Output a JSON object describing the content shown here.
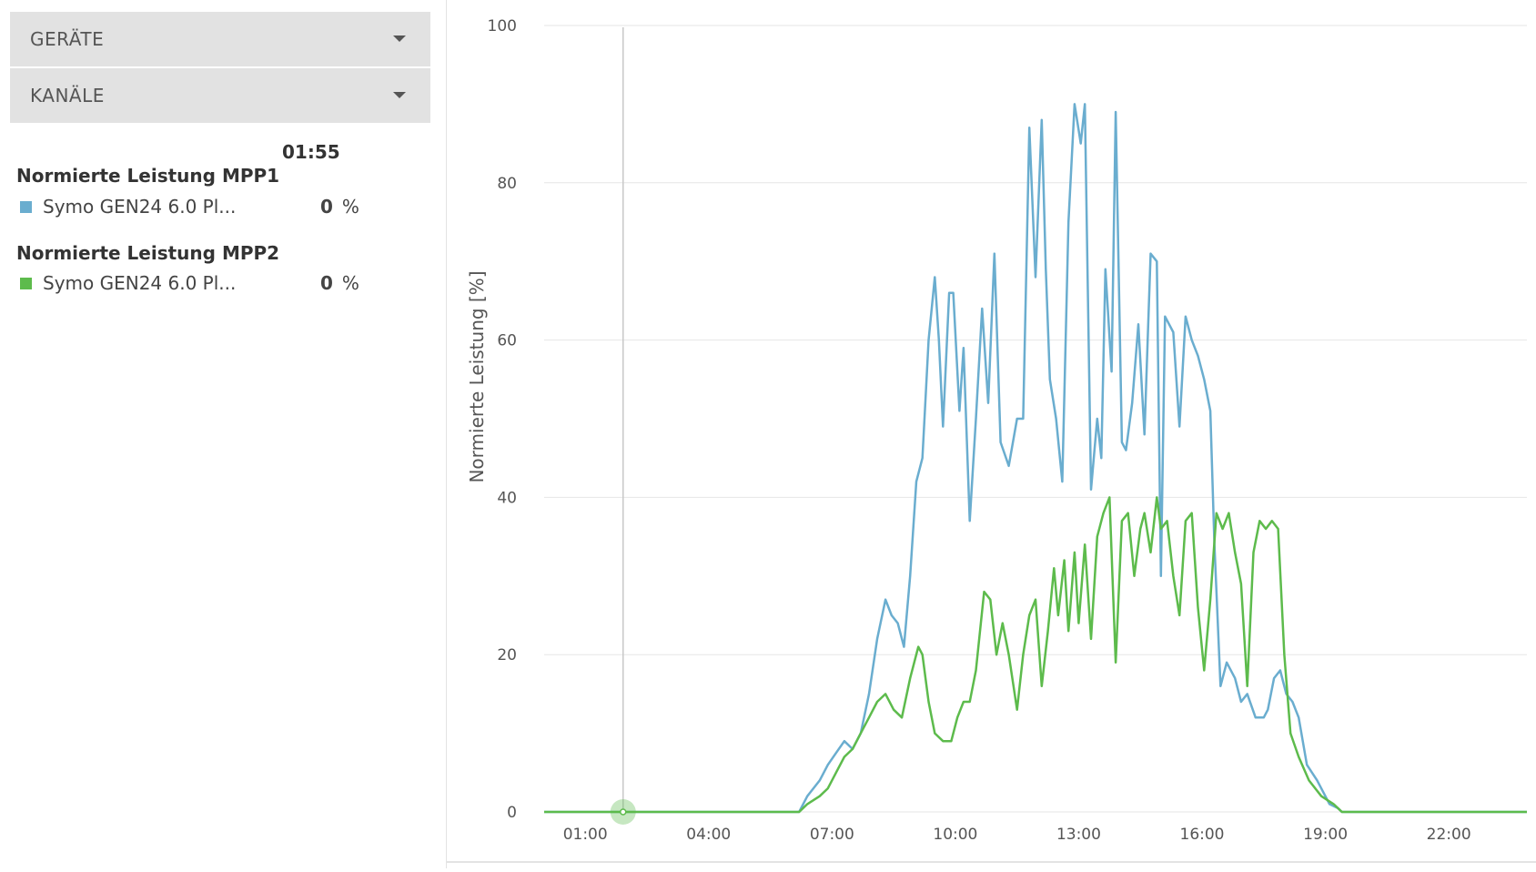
{
  "sidebar": {
    "devices_label": "GERÄTE",
    "channels_label": "KANÄLE",
    "time": "01:55",
    "groups": [
      {
        "title": "Normierte Leistung MPP1",
        "entries": [
          {
            "name": "Symo GEN24 6.0 Pl...",
            "value": "0",
            "unit": "%",
            "color": "#6aadcf"
          }
        ]
      },
      {
        "title": "Normierte Leistung MPP2",
        "entries": [
          {
            "name": "Symo GEN24 6.0 Pl...",
            "value": "0",
            "unit": "%",
            "color": "#5dbb4c"
          }
        ]
      }
    ]
  },
  "chart_data": {
    "type": "line",
    "ylabel": "Normierte Leistung [%]",
    "ylim": [
      0,
      100
    ],
    "yticks": [
      0,
      20,
      40,
      60,
      80,
      100
    ],
    "xlim": [
      0,
      23.9
    ],
    "xticks": [
      {
        "x": 1,
        "label": "01:00"
      },
      {
        "x": 4,
        "label": "04:00"
      },
      {
        "x": 7,
        "label": "07:00"
      },
      {
        "x": 10,
        "label": "10:00"
      },
      {
        "x": 13,
        "label": "13:00"
      },
      {
        "x": 16,
        "label": "16:00"
      },
      {
        "x": 19,
        "label": "19:00"
      },
      {
        "x": 22,
        "label": "22:00"
      }
    ],
    "grid": true,
    "cursor": {
      "x": 1.92,
      "y": 0
    },
    "series": [
      {
        "color": "#6aadcf",
        "points": [
          [
            0,
            0
          ],
          [
            6.2,
            0
          ],
          [
            6.4,
            2
          ],
          [
            6.7,
            4
          ],
          [
            6.9,
            6
          ],
          [
            7.1,
            7.5
          ],
          [
            7.3,
            9
          ],
          [
            7.5,
            8
          ],
          [
            7.7,
            10
          ],
          [
            7.9,
            15
          ],
          [
            8.1,
            22
          ],
          [
            8.3,
            27
          ],
          [
            8.45,
            25
          ],
          [
            8.6,
            24
          ],
          [
            8.75,
            21
          ],
          [
            8.9,
            30
          ],
          [
            9.05,
            42
          ],
          [
            9.2,
            45
          ],
          [
            9.35,
            60
          ],
          [
            9.5,
            68
          ],
          [
            9.6,
            60
          ],
          [
            9.7,
            49
          ],
          [
            9.85,
            66
          ],
          [
            9.95,
            66
          ],
          [
            10.1,
            51
          ],
          [
            10.2,
            59
          ],
          [
            10.35,
            37
          ],
          [
            10.5,
            50
          ],
          [
            10.65,
            64
          ],
          [
            10.8,
            52
          ],
          [
            10.95,
            71
          ],
          [
            11.1,
            47
          ],
          [
            11.3,
            44
          ],
          [
            11.5,
            50
          ],
          [
            11.65,
            50
          ],
          [
            11.8,
            87
          ],
          [
            11.95,
            68
          ],
          [
            12.1,
            88
          ],
          [
            12.2,
            69
          ],
          [
            12.3,
            55
          ],
          [
            12.45,
            50
          ],
          [
            12.6,
            42
          ],
          [
            12.75,
            75
          ],
          [
            12.9,
            90
          ],
          [
            13.05,
            85
          ],
          [
            13.15,
            90
          ],
          [
            13.3,
            41
          ],
          [
            13.45,
            50
          ],
          [
            13.55,
            45
          ],
          [
            13.65,
            69
          ],
          [
            13.8,
            56
          ],
          [
            13.9,
            89
          ],
          [
            14.05,
            47
          ],
          [
            14.15,
            46
          ],
          [
            14.3,
            52
          ],
          [
            14.45,
            62
          ],
          [
            14.6,
            48
          ],
          [
            14.75,
            71
          ],
          [
            14.9,
            70
          ],
          [
            15.0,
            30
          ],
          [
            15.1,
            63
          ],
          [
            15.3,
            61
          ],
          [
            15.45,
            49
          ],
          [
            15.6,
            63
          ],
          [
            15.75,
            60
          ],
          [
            15.9,
            58
          ],
          [
            16.05,
            55
          ],
          [
            16.2,
            51
          ],
          [
            16.3,
            34
          ],
          [
            16.45,
            16
          ],
          [
            16.6,
            19
          ],
          [
            16.8,
            17
          ],
          [
            16.95,
            14
          ],
          [
            17.1,
            15
          ],
          [
            17.3,
            12
          ],
          [
            17.5,
            12
          ],
          [
            17.6,
            13
          ],
          [
            17.75,
            17
          ],
          [
            17.9,
            18
          ],
          [
            18.05,
            15
          ],
          [
            18.2,
            14
          ],
          [
            18.35,
            12
          ],
          [
            18.55,
            6
          ],
          [
            18.8,
            4
          ],
          [
            19.1,
            1
          ],
          [
            19.3,
            0.5
          ],
          [
            19.4,
            0
          ],
          [
            23.9,
            0
          ]
        ]
      },
      {
        "color": "#5dbb4c",
        "points": [
          [
            0,
            0
          ],
          [
            6.2,
            0
          ],
          [
            6.4,
            1
          ],
          [
            6.7,
            2
          ],
          [
            6.9,
            3
          ],
          [
            7.1,
            5
          ],
          [
            7.3,
            7
          ],
          [
            7.5,
            8
          ],
          [
            7.7,
            10
          ],
          [
            7.9,
            12
          ],
          [
            8.1,
            14
          ],
          [
            8.3,
            15
          ],
          [
            8.5,
            13
          ],
          [
            8.7,
            12
          ],
          [
            8.9,
            17
          ],
          [
            9.1,
            21
          ],
          [
            9.2,
            20
          ],
          [
            9.35,
            14
          ],
          [
            9.5,
            10
          ],
          [
            9.7,
            9
          ],
          [
            9.9,
            9
          ],
          [
            10.05,
            12
          ],
          [
            10.2,
            14
          ],
          [
            10.35,
            14
          ],
          [
            10.5,
            18
          ],
          [
            10.7,
            28
          ],
          [
            10.85,
            27
          ],
          [
            11.0,
            20
          ],
          [
            11.15,
            24
          ],
          [
            11.3,
            20
          ],
          [
            11.5,
            13
          ],
          [
            11.65,
            20
          ],
          [
            11.8,
            25
          ],
          [
            11.95,
            27
          ],
          [
            12.1,
            16
          ],
          [
            12.25,
            23
          ],
          [
            12.4,
            31
          ],
          [
            12.5,
            25
          ],
          [
            12.65,
            32
          ],
          [
            12.75,
            23
          ],
          [
            12.9,
            33
          ],
          [
            13.0,
            24
          ],
          [
            13.15,
            34
          ],
          [
            13.3,
            22
          ],
          [
            13.45,
            35
          ],
          [
            13.6,
            38
          ],
          [
            13.75,
            40
          ],
          [
            13.9,
            19
          ],
          [
            14.05,
            37
          ],
          [
            14.2,
            38
          ],
          [
            14.35,
            30
          ],
          [
            14.5,
            36
          ],
          [
            14.6,
            38
          ],
          [
            14.75,
            33
          ],
          [
            14.9,
            40
          ],
          [
            15.0,
            36
          ],
          [
            15.15,
            37
          ],
          [
            15.3,
            30
          ],
          [
            15.45,
            25
          ],
          [
            15.6,
            37
          ],
          [
            15.75,
            38
          ],
          [
            15.9,
            26
          ],
          [
            16.05,
            18
          ],
          [
            16.2,
            27
          ],
          [
            16.35,
            38
          ],
          [
            16.5,
            36
          ],
          [
            16.65,
            38
          ],
          [
            16.8,
            33
          ],
          [
            16.95,
            29
          ],
          [
            17.1,
            16
          ],
          [
            17.25,
            33
          ],
          [
            17.4,
            37
          ],
          [
            17.55,
            36
          ],
          [
            17.7,
            37
          ],
          [
            17.85,
            36
          ],
          [
            18.0,
            20
          ],
          [
            18.15,
            10
          ],
          [
            18.35,
            7
          ],
          [
            18.6,
            4
          ],
          [
            18.9,
            2
          ],
          [
            19.2,
            1
          ],
          [
            19.4,
            0
          ],
          [
            23.9,
            0
          ]
        ]
      }
    ]
  }
}
